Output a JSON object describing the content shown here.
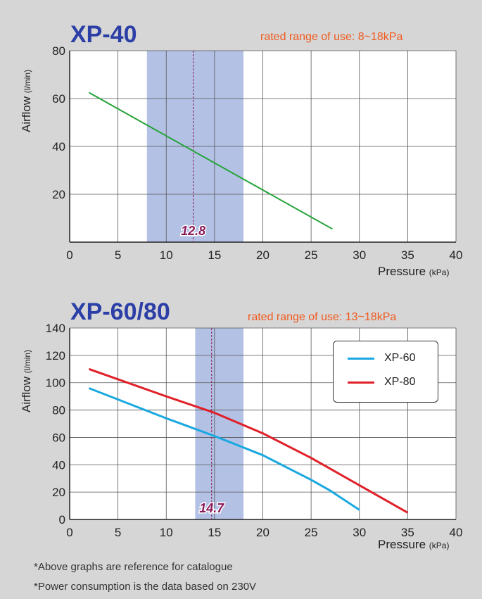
{
  "chart_data": [
    {
      "type": "line",
      "title": "XP-40",
      "subtitle": "rated range of use: 8~18kPa",
      "ylabel": "Airflow",
      "ylabel_unit": "(l/min)",
      "xlabel": "Pressure",
      "xlabel_unit": "(kPa)",
      "xlim": [
        0,
        40
      ],
      "ylim": [
        0,
        80
      ],
      "x_ticks": [
        0,
        5,
        10,
        15,
        20,
        25,
        30,
        35,
        40
      ],
      "y_ticks": [
        20,
        40,
        60,
        80
      ],
      "grid": true,
      "rated_range": [
        8,
        18
      ],
      "marker_value": 12.8,
      "marker_label": "12.8",
      "series": [
        {
          "color": "#27a43a",
          "x": [
            2,
            27.2
          ],
          "y": [
            62.5,
            5.5
          ]
        }
      ]
    },
    {
      "type": "line",
      "title": "XP-60/80",
      "subtitle": "rated range of use: 13~18kPa",
      "ylabel": "Airflow",
      "ylabel_unit": "(l/min)",
      "xlabel": "Pressure",
      "xlabel_unit": "(kPa)",
      "xlim": [
        0,
        40
      ],
      "ylim": [
        0,
        140
      ],
      "x_ticks": [
        0,
        5,
        10,
        15,
        20,
        25,
        30,
        35,
        40
      ],
      "y_ticks": [
        0,
        20,
        40,
        60,
        80,
        100,
        120,
        140
      ],
      "grid": true,
      "rated_range": [
        13,
        18
      ],
      "marker_value": 14.7,
      "marker_label": "14.7",
      "legend_position": "top-right",
      "series": [
        {
          "name": "XP-60",
          "color": "#1aa8e0",
          "x": [
            2,
            10,
            15,
            20,
            25,
            27,
            30
          ],
          "y": [
            96,
            74,
            61,
            47,
            29,
            21,
            7
          ]
        },
        {
          "name": "XP-80",
          "color": "#e02028",
          "x": [
            2,
            10,
            15,
            20,
            25,
            30,
            35
          ],
          "y": [
            110,
            90,
            78,
            63,
            45,
            25,
            5
          ]
        }
      ]
    }
  ],
  "notes": [
    "*Above graphs are reference for catalogue",
    "*Power consumption is the data based on 230V"
  ]
}
